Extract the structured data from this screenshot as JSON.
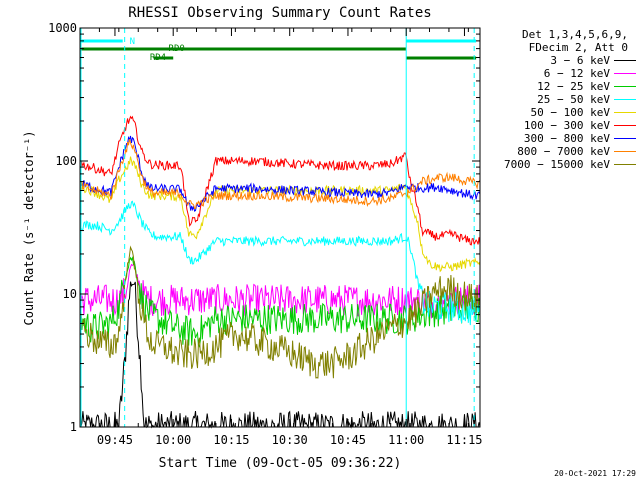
{
  "chart_data": {
    "type": "line",
    "title": "RHESSI Observing Summary Count Rates",
    "xlabel": "Start Time (09-Oct-05 09:36:22)",
    "ylabel": "Count Rate (s⁻¹ detector⁻¹)",
    "yscale": "log",
    "ylim": [
      1,
      1000
    ],
    "xlim_minutes_after_0936": [
      0,
      103
    ],
    "x_tick_labels": [
      "09:45",
      "10:00",
      "10:15",
      "10:30",
      "10:45",
      "11:00",
      "11:15"
    ],
    "x_tick_minutes_after_0936": [
      9,
      24,
      39,
      54,
      69,
      84,
      99
    ],
    "y_tick_labels": [
      "1",
      "10",
      "100",
      "1000"
    ],
    "y_tick_values": [
      1,
      10,
      100,
      1000
    ],
    "legend_header": [
      "Det 1,3,4,5,6,9,",
      "FDecim 2, Att 0"
    ],
    "legend_position": "right",
    "flag_labels": [
      "N",
      "RD0",
      "RD4"
    ],
    "timestamp": "20-Oct-2021 17:29",
    "series": [
      {
        "name": "3 - 6 keV",
        "color": "#000000",
        "x": [
          0,
          8,
          10,
          11.5,
          12.5,
          13,
          14,
          15,
          16,
          16.5
        ],
        "values": [
          1,
          1,
          1,
          3,
          8,
          12,
          12,
          5,
          2,
          1
        ]
      },
      {
        "name": "6 - 12 keV",
        "color": "#ff00ff",
        "x": [
          8,
          10,
          12,
          13,
          14,
          16,
          18,
          20,
          26,
          28,
          30,
          35,
          45,
          60,
          75,
          85,
          88,
          90,
          92,
          96,
          100,
          102
        ],
        "values": [
          9,
          9,
          11,
          16,
          16,
          10,
          9,
          9,
          9,
          9,
          9,
          9,
          9,
          9,
          9,
          9,
          9,
          8.5,
          8.5,
          9,
          9,
          9
        ]
      },
      {
        "name": "12 - 25 keV",
        "color": "#00cc00",
        "x": [
          0,
          3,
          8,
          10,
          12,
          13,
          14,
          16,
          18,
          20,
          25,
          30,
          35,
          45,
          60,
          75,
          85,
          88,
          92,
          96,
          100,
          102
        ],
        "values": [
          6.5,
          5.5,
          6,
          8,
          15,
          19,
          17,
          9,
          7,
          6.5,
          5.5,
          5,
          6.5,
          6.5,
          6.5,
          6.5,
          6.5,
          7,
          7.5,
          7.5,
          8,
          8
        ]
      },
      {
        "name": "25 - 50 keV",
        "color": "#00ffff",
        "x": [
          0,
          4,
          8,
          10,
          12,
          13,
          14,
          16,
          18,
          20,
          26,
          28,
          30,
          35,
          45,
          55,
          65,
          75,
          80,
          84,
          85,
          87,
          88,
          90,
          92,
          96,
          100,
          102
        ],
        "values": [
          33,
          33,
          30,
          35,
          44,
          48,
          45,
          34,
          28,
          27,
          27,
          18,
          18,
          25,
          25,
          25,
          25,
          25,
          25,
          27,
          23,
          12,
          9,
          8,
          8,
          8,
          7.5,
          7.5
        ]
      },
      {
        "name": "50 - 100 keV",
        "color": "#e6d800",
        "x": [
          0,
          4,
          8,
          10,
          12,
          13,
          14,
          16,
          18,
          20,
          26,
          28,
          30,
          35,
          45,
          55,
          65,
          75,
          80,
          84,
          85,
          87,
          88,
          90,
          92,
          96,
          100,
          102
        ],
        "values": [
          65,
          58,
          50,
          72,
          90,
          100,
          95,
          65,
          55,
          55,
          54,
          28,
          28,
          60,
          60,
          60,
          60,
          60,
          60,
          65,
          50,
          35,
          22,
          17,
          16,
          16,
          17,
          17
        ]
      },
      {
        "name": "100 - 300 keV",
        "color": "#ff0000",
        "x": [
          0,
          4,
          8,
          10,
          12,
          13,
          14,
          16,
          18,
          20,
          26,
          28,
          30,
          35,
          45,
          55,
          65,
          75,
          80,
          84,
          85,
          87,
          88,
          90,
          92,
          96,
          100,
          102
        ],
        "values": [
          95,
          88,
          80,
          130,
          190,
          210,
          190,
          115,
          95,
          93,
          92,
          35,
          35,
          100,
          100,
          95,
          92,
          92,
          95,
          110,
          70,
          45,
          30,
          28,
          27,
          28,
          25,
          25
        ]
      },
      {
        "name": "300 - 800 keV",
        "color": "#0000ff",
        "x": [
          0,
          4,
          8,
          10,
          12,
          13,
          14,
          16,
          18,
          20,
          26,
          28,
          30,
          35,
          45,
          55,
          65,
          75,
          80,
          84,
          85,
          87,
          88,
          90,
          92,
          96,
          100,
          102
        ],
        "values": [
          68,
          62,
          58,
          90,
          135,
          150,
          135,
          80,
          62,
          62,
          61,
          45,
          45,
          62,
          62,
          60,
          58,
          56,
          58,
          65,
          64,
          63,
          63,
          63,
          64,
          60,
          56,
          55
        ]
      },
      {
        "name": "800 - 7000 keV",
        "color": "#ff8000",
        "x": [
          0,
          4,
          8,
          10,
          12,
          13,
          14,
          16,
          18,
          20,
          26,
          28,
          30,
          35,
          45,
          55,
          65,
          75,
          80,
          84,
          85,
          87,
          88,
          90,
          92,
          96,
          100,
          102
        ],
        "values": [
          65,
          60,
          55,
          85,
          125,
          140,
          125,
          75,
          58,
          57,
          57,
          47,
          47,
          55,
          55,
          53,
          52,
          50,
          52,
          58,
          60,
          65,
          70,
          72,
          75,
          75,
          70,
          68
        ]
      },
      {
        "name": "7000 - 15000 keV",
        "color": "#808000",
        "x": [
          0,
          2,
          4,
          8,
          10,
          12,
          13,
          14,
          16,
          18,
          20,
          22,
          25,
          28,
          30,
          35,
          40,
          45,
          50,
          55,
          60,
          65,
          70,
          75,
          80,
          85,
          88,
          90,
          92,
          95,
          98,
          100,
          102
        ],
        "values": [
          6,
          5,
          4.5,
          4,
          5,
          14,
          24,
          16,
          7,
          4.5,
          4,
          4,
          3.5,
          3.5,
          3.5,
          4,
          5,
          4.5,
          4,
          3.5,
          3,
          3,
          3.5,
          4.5,
          5.5,
          6.5,
          8,
          9.5,
          10.5,
          11,
          10,
          9.5,
          9
        ]
      }
    ]
  }
}
